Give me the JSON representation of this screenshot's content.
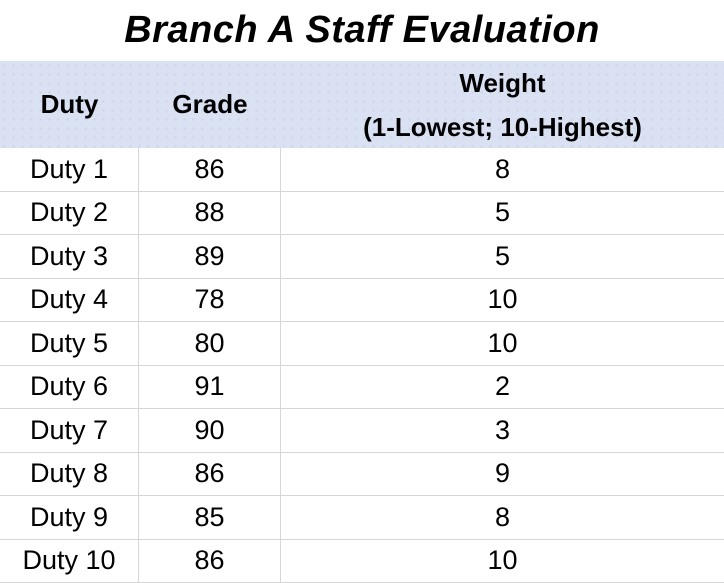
{
  "chart_data": {
    "type": "table",
    "title": "Branch A Staff Evaluation",
    "columns": [
      {
        "id": "duty",
        "label": "Duty"
      },
      {
        "id": "grade",
        "label": "Grade"
      },
      {
        "id": "weight",
        "label": "Weight",
        "sublabel": "(1-Lowest; 10-Highest)"
      }
    ],
    "rows": [
      {
        "duty": "Duty 1",
        "grade": 86,
        "weight": 8
      },
      {
        "duty": "Duty 2",
        "grade": 88,
        "weight": 5
      },
      {
        "duty": "Duty 3",
        "grade": 89,
        "weight": 5
      },
      {
        "duty": "Duty 4",
        "grade": 78,
        "weight": 10
      },
      {
        "duty": "Duty 5",
        "grade": 80,
        "weight": 10
      },
      {
        "duty": "Duty 6",
        "grade": 91,
        "weight": 2
      },
      {
        "duty": "Duty 7",
        "grade": 90,
        "weight": 3
      },
      {
        "duty": "Duty 8",
        "grade": 86,
        "weight": 9
      },
      {
        "duty": "Duty 9",
        "grade": 85,
        "weight": 8
      },
      {
        "duty": "Duty 10",
        "grade": 86,
        "weight": 10
      }
    ],
    "colors": {
      "header_bg": "#DAE1F3",
      "border": "#D6D6D6",
      "text": "#000000"
    }
  }
}
